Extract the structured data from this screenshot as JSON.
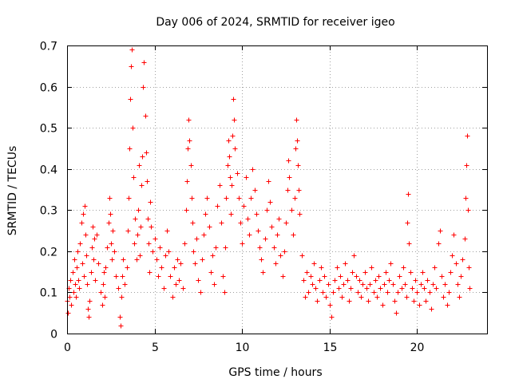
{
  "chart_data": {
    "type": "scatter",
    "title": "Day 006 of 2024, SRMTID for receiver igeo",
    "xlabel": "GPS time / hours",
    "ylabel": "SRMTID / TECUs",
    "xlim": [
      0,
      24
    ],
    "ylim": [
      0,
      0.7
    ],
    "x_ticks": [
      0,
      5,
      10,
      15,
      20
    ],
    "x_tick_labels": [
      "0",
      "5",
      "10",
      "15",
      "20"
    ],
    "y_ticks": [
      0,
      0.1,
      0.2,
      0.3,
      0.4,
      0.5,
      0.6,
      0.7
    ],
    "y_tick_labels": [
      "0",
      "0.1",
      "0.2",
      "0.3",
      "0.4",
      "0.5",
      "0.6",
      "0.7"
    ],
    "grid": true,
    "marker": "plus",
    "series": [
      {
        "name": "SRMTID",
        "color": "#ff0000",
        "points": [
          [
            0.0,
            0.08
          ],
          [
            0.05,
            0.05
          ],
          [
            0.1,
            0.11
          ],
          [
            0.15,
            0.09
          ],
          [
            0.2,
            0.13
          ],
          [
            0.25,
            0.07
          ],
          [
            0.3,
            0.15
          ],
          [
            0.35,
            0.1
          ],
          [
            0.4,
            0.18
          ],
          [
            0.45,
            0.12
          ],
          [
            0.5,
            0.09
          ],
          [
            0.55,
            0.16
          ],
          [
            0.6,
            0.2
          ],
          [
            0.65,
            0.13
          ],
          [
            0.7,
            0.11
          ],
          [
            0.75,
            0.22
          ],
          [
            0.8,
            0.27
          ],
          [
            0.85,
            0.17
          ],
          [
            0.9,
            0.29
          ],
          [
            0.95,
            0.14
          ],
          [
            1.0,
            0.31
          ],
          [
            1.05,
            0.24
          ],
          [
            1.1,
            0.19
          ],
          [
            1.15,
            0.12
          ],
          [
            1.2,
            0.06
          ],
          [
            1.25,
            0.04
          ],
          [
            1.3,
            0.08
          ],
          [
            1.35,
            0.15
          ],
          [
            1.4,
            0.21
          ],
          [
            1.45,
            0.26
          ],
          [
            1.5,
            0.18
          ],
          [
            1.55,
            0.23
          ],
          [
            1.6,
            0.13
          ],
          [
            1.7,
            0.24
          ],
          [
            1.8,
            0.17
          ],
          [
            1.9,
            0.1
          ],
          [
            2.0,
            0.07
          ],
          [
            2.05,
            0.12
          ],
          [
            2.1,
            0.15
          ],
          [
            2.15,
            0.09
          ],
          [
            2.2,
            0.16
          ],
          [
            2.3,
            0.21
          ],
          [
            2.35,
            0.27
          ],
          [
            2.4,
            0.33
          ],
          [
            2.45,
            0.29
          ],
          [
            2.5,
            0.22
          ],
          [
            2.55,
            0.18
          ],
          [
            2.6,
            0.25
          ],
          [
            2.7,
            0.2
          ],
          [
            2.8,
            0.14
          ],
          [
            2.9,
            0.11
          ],
          [
            3.0,
            0.04
          ],
          [
            3.05,
            0.02
          ],
          [
            3.1,
            0.09
          ],
          [
            3.15,
            0.14
          ],
          [
            3.2,
            0.18
          ],
          [
            3.3,
            0.12
          ],
          [
            3.4,
            0.16
          ],
          [
            3.45,
            0.25
          ],
          [
            3.5,
            0.33
          ],
          [
            3.55,
            0.45
          ],
          [
            3.6,
            0.57
          ],
          [
            3.65,
            0.65
          ],
          [
            3.7,
            0.69
          ],
          [
            3.75,
            0.5
          ],
          [
            3.8,
            0.38
          ],
          [
            3.85,
            0.22
          ],
          [
            3.9,
            0.28
          ],
          [
            3.95,
            0.18
          ],
          [
            4.0,
            0.24
          ],
          [
            4.05,
            0.3
          ],
          [
            4.1,
            0.41
          ],
          [
            4.15,
            0.19
          ],
          [
            4.2,
            0.26
          ],
          [
            4.25,
            0.36
          ],
          [
            4.3,
            0.43
          ],
          [
            4.35,
            0.6
          ],
          [
            4.4,
            0.66
          ],
          [
            4.45,
            0.53
          ],
          [
            4.5,
            0.44
          ],
          [
            4.55,
            0.37
          ],
          [
            4.6,
            0.28
          ],
          [
            4.65,
            0.22
          ],
          [
            4.7,
            0.15
          ],
          [
            4.75,
            0.32
          ],
          [
            4.8,
            0.26
          ],
          [
            4.9,
            0.2
          ],
          [
            5.0,
            0.23
          ],
          [
            5.1,
            0.18
          ],
          [
            5.2,
            0.14
          ],
          [
            5.3,
            0.21
          ],
          [
            5.4,
            0.16
          ],
          [
            5.5,
            0.11
          ],
          [
            5.6,
            0.19
          ],
          [
            5.7,
            0.25
          ],
          [
            5.8,
            0.2
          ],
          [
            5.9,
            0.14
          ],
          [
            6.0,
            0.09
          ],
          [
            6.1,
            0.16
          ],
          [
            6.2,
            0.12
          ],
          [
            6.3,
            0.18
          ],
          [
            6.4,
            0.13
          ],
          [
            6.5,
            0.17
          ],
          [
            6.6,
            0.11
          ],
          [
            6.7,
            0.22
          ],
          [
            6.8,
            0.3
          ],
          [
            6.85,
            0.37
          ],
          [
            6.9,
            0.45
          ],
          [
            6.95,
            0.52
          ],
          [
            7.0,
            0.47
          ],
          [
            7.05,
            0.41
          ],
          [
            7.1,
            0.33
          ],
          [
            7.15,
            0.27
          ],
          [
            7.2,
            0.2
          ],
          [
            7.3,
            0.17
          ],
          [
            7.4,
            0.23
          ],
          [
            7.5,
            0.13
          ],
          [
            7.6,
            0.1
          ],
          [
            7.7,
            0.18
          ],
          [
            7.8,
            0.24
          ],
          [
            7.9,
            0.29
          ],
          [
            8.0,
            0.33
          ],
          [
            8.1,
            0.26
          ],
          [
            8.2,
            0.15
          ],
          [
            8.3,
            0.19
          ],
          [
            8.4,
            0.12
          ],
          [
            8.5,
            0.21
          ],
          [
            8.6,
            0.31
          ],
          [
            8.7,
            0.36
          ],
          [
            8.8,
            0.27
          ],
          [
            8.9,
            0.14
          ],
          [
            9.0,
            0.1
          ],
          [
            9.05,
            0.21
          ],
          [
            9.1,
            0.33
          ],
          [
            9.15,
            0.41
          ],
          [
            9.2,
            0.47
          ],
          [
            9.25,
            0.43
          ],
          [
            9.3,
            0.38
          ],
          [
            9.35,
            0.29
          ],
          [
            9.4,
            0.36
          ],
          [
            9.45,
            0.48
          ],
          [
            9.5,
            0.57
          ],
          [
            9.55,
            0.52
          ],
          [
            9.6,
            0.45
          ],
          [
            9.7,
            0.39
          ],
          [
            9.8,
            0.33
          ],
          [
            9.9,
            0.27
          ],
          [
            10.0,
            0.22
          ],
          [
            10.1,
            0.31
          ],
          [
            10.2,
            0.38
          ],
          [
            10.3,
            0.28
          ],
          [
            10.4,
            0.24
          ],
          [
            10.5,
            0.33
          ],
          [
            10.6,
            0.4
          ],
          [
            10.7,
            0.35
          ],
          [
            10.8,
            0.29
          ],
          [
            10.9,
            0.25
          ],
          [
            11.0,
            0.21
          ],
          [
            11.1,
            0.18
          ],
          [
            11.2,
            0.15
          ],
          [
            11.3,
            0.23
          ],
          [
            11.4,
            0.3
          ],
          [
            11.5,
            0.37
          ],
          [
            11.6,
            0.32
          ],
          [
            11.7,
            0.26
          ],
          [
            11.8,
            0.21
          ],
          [
            11.9,
            0.17
          ],
          [
            12.0,
            0.24
          ],
          [
            12.1,
            0.28
          ],
          [
            12.2,
            0.19
          ],
          [
            12.3,
            0.14
          ],
          [
            12.4,
            0.2
          ],
          [
            12.5,
            0.27
          ],
          [
            12.6,
            0.35
          ],
          [
            12.65,
            0.42
          ],
          [
            12.7,
            0.38
          ],
          [
            12.8,
            0.3
          ],
          [
            12.9,
            0.24
          ],
          [
            13.0,
            0.33
          ],
          [
            13.05,
            0.45
          ],
          [
            13.1,
            0.52
          ],
          [
            13.15,
            0.47
          ],
          [
            13.2,
            0.41
          ],
          [
            13.25,
            0.35
          ],
          [
            13.3,
            0.29
          ],
          [
            13.4,
            0.19
          ],
          [
            13.5,
            0.13
          ],
          [
            13.6,
            0.09
          ],
          [
            13.7,
            0.15
          ],
          [
            13.8,
            0.1
          ],
          [
            13.9,
            0.14
          ],
          [
            14.0,
            0.12
          ],
          [
            14.1,
            0.17
          ],
          [
            14.2,
            0.11
          ],
          [
            14.3,
            0.08
          ],
          [
            14.4,
            0.13
          ],
          [
            14.5,
            0.16
          ],
          [
            14.6,
            0.1
          ],
          [
            14.7,
            0.14
          ],
          [
            14.8,
            0.09
          ],
          [
            14.9,
            0.12
          ],
          [
            15.0,
            0.07
          ],
          [
            15.1,
            0.04
          ],
          [
            15.2,
            0.1
          ],
          [
            15.3,
            0.13
          ],
          [
            15.4,
            0.16
          ],
          [
            15.5,
            0.11
          ],
          [
            15.6,
            0.14
          ],
          [
            15.7,
            0.09
          ],
          [
            15.8,
            0.12
          ],
          [
            15.9,
            0.17
          ],
          [
            16.0,
            0.13
          ],
          [
            16.1,
            0.08
          ],
          [
            16.2,
            0.11
          ],
          [
            16.3,
            0.15
          ],
          [
            16.4,
            0.19
          ],
          [
            16.5,
            0.14
          ],
          [
            16.6,
            0.1
          ],
          [
            16.7,
            0.13
          ],
          [
            16.8,
            0.09
          ],
          [
            16.9,
            0.12
          ],
          [
            17.0,
            0.15
          ],
          [
            17.1,
            0.11
          ],
          [
            17.2,
            0.08
          ],
          [
            17.3,
            0.12
          ],
          [
            17.4,
            0.16
          ],
          [
            17.5,
            0.1
          ],
          [
            17.6,
            0.13
          ],
          [
            17.7,
            0.09
          ],
          [
            17.8,
            0.14
          ],
          [
            17.9,
            0.11
          ],
          [
            18.0,
            0.07
          ],
          [
            18.1,
            0.12
          ],
          [
            18.2,
            0.15
          ],
          [
            18.3,
            0.1
          ],
          [
            18.4,
            0.13
          ],
          [
            18.5,
            0.17
          ],
          [
            18.6,
            0.12
          ],
          [
            18.7,
            0.08
          ],
          [
            18.8,
            0.05
          ],
          [
            18.9,
            0.1
          ],
          [
            19.0,
            0.14
          ],
          [
            19.1,
            0.11
          ],
          [
            19.2,
            0.16
          ],
          [
            19.3,
            0.12
          ],
          [
            19.4,
            0.09
          ],
          [
            19.45,
            0.27
          ],
          [
            19.5,
            0.34
          ],
          [
            19.55,
            0.22
          ],
          [
            19.6,
            0.15
          ],
          [
            19.7,
            0.11
          ],
          [
            19.8,
            0.08
          ],
          [
            19.9,
            0.13
          ],
          [
            20.0,
            0.1
          ],
          [
            20.1,
            0.07
          ],
          [
            20.2,
            0.12
          ],
          [
            20.3,
            0.15
          ],
          [
            20.4,
            0.11
          ],
          [
            20.5,
            0.08
          ],
          [
            20.6,
            0.13
          ],
          [
            20.7,
            0.1
          ],
          [
            20.8,
            0.06
          ],
          [
            20.9,
            0.12
          ],
          [
            21.0,
            0.16
          ],
          [
            21.1,
            0.11
          ],
          [
            21.2,
            0.22
          ],
          [
            21.3,
            0.25
          ],
          [
            21.4,
            0.14
          ],
          [
            21.5,
            0.09
          ],
          [
            21.6,
            0.12
          ],
          [
            21.7,
            0.07
          ],
          [
            21.8,
            0.1
          ],
          [
            21.9,
            0.15
          ],
          [
            22.0,
            0.19
          ],
          [
            22.1,
            0.24
          ],
          [
            22.2,
            0.17
          ],
          [
            22.3,
            0.12
          ],
          [
            22.4,
            0.09
          ],
          [
            22.5,
            0.14
          ],
          [
            22.6,
            0.18
          ],
          [
            22.7,
            0.23
          ],
          [
            22.75,
            0.33
          ],
          [
            22.8,
            0.41
          ],
          [
            22.85,
            0.48
          ],
          [
            22.9,
            0.3
          ],
          [
            22.95,
            0.16
          ],
          [
            23.0,
            0.11
          ]
        ]
      }
    ]
  }
}
